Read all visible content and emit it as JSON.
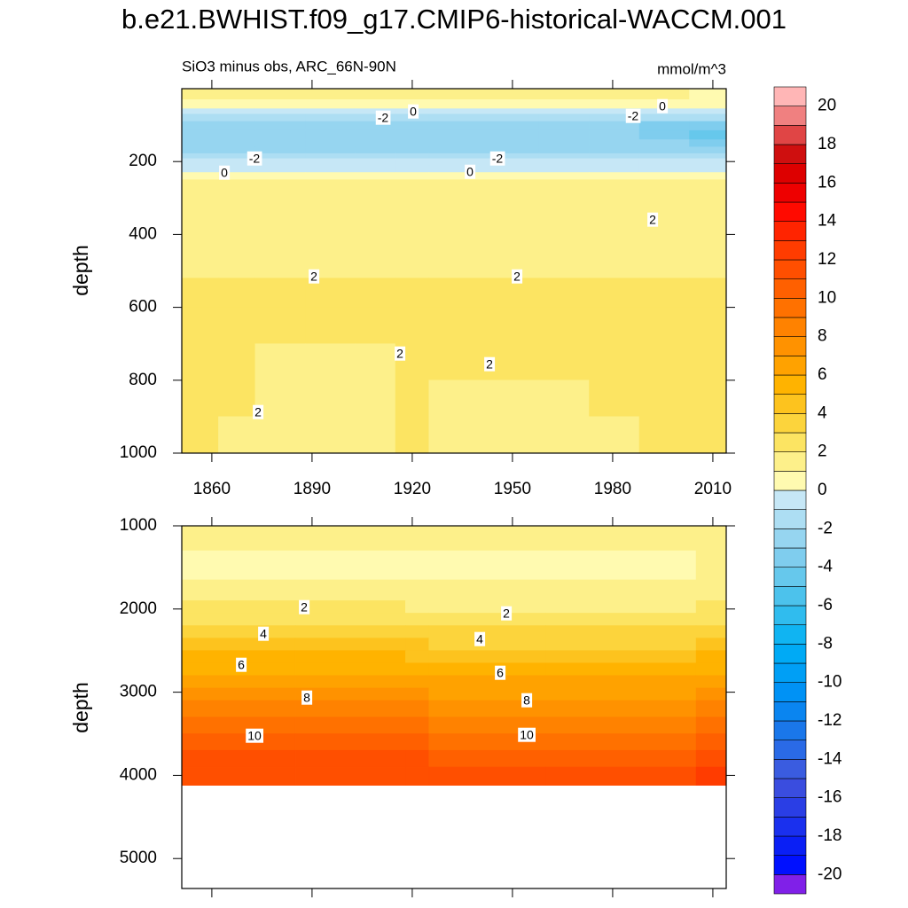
{
  "title": "b.e21.BWHIST.f09_g17.CMIP6-historical-WACCM.001",
  "chart_data": [
    {
      "type": "contour",
      "subtitle": "SiO3 minus obs, ARC_66N-90N",
      "units": "mmol/m^3",
      "y_label": "depth",
      "xlim": [
        1851,
        2014
      ],
      "ylim": [
        0,
        1000
      ],
      "xticks": [
        1860,
        1890,
        1920,
        1950,
        1980,
        2010
      ],
      "x_tick_labels": true,
      "yticks": [
        200,
        400,
        600,
        800,
        1000
      ],
      "x_edges": [
        1851,
        1862,
        1873,
        1888,
        1903,
        1915,
        1925,
        1943,
        1958,
        1973,
        1988,
        2003,
        2014
      ],
      "depth_edges": [
        0,
        30,
        55,
        70,
        90,
        115,
        140,
        160,
        178,
        192,
        210,
        230,
        250,
        350,
        450,
        520,
        600,
        700,
        800,
        900,
        1000
      ],
      "z": [
        [
          1.5,
          1.5,
          1.5,
          1.5,
          1.5,
          1.5,
          1.5,
          1.5,
          1.5,
          1.5,
          1.5,
          0.5
        ],
        [
          0.5,
          0.5,
          0.5,
          0.5,
          0.5,
          0.5,
          0.5,
          0.5,
          0.5,
          0.5,
          0.5,
          0.5
        ],
        [
          -0.5,
          -0.5,
          -0.5,
          -0.5,
          -0.5,
          -0.5,
          -0.5,
          -0.5,
          -0.5,
          -0.5,
          -0.5,
          -0.5
        ],
        [
          -1.5,
          -1.5,
          -1.5,
          -1.5,
          -1.5,
          -1.5,
          -1.5,
          -1.5,
          -1.5,
          -1.5,
          -1.5,
          -1.5
        ],
        [
          -2.5,
          -2.5,
          -2.5,
          -2.5,
          -2.5,
          -2.5,
          -2.5,
          -2.5,
          -2.5,
          -2.5,
          -3.5,
          -3.5
        ],
        [
          -2.5,
          -2.5,
          -2.5,
          -2.5,
          -2.5,
          -2.5,
          -2.5,
          -2.5,
          -2.5,
          -2.5,
          -3.5,
          -4.5
        ],
        [
          -2.5,
          -2.5,
          -2.5,
          -2.5,
          -2.5,
          -2.5,
          -2.5,
          -2.5,
          -2.5,
          -2.5,
          -2.5,
          -3.5
        ],
        [
          -2.5,
          -2.5,
          -2.5,
          -2.5,
          -2.5,
          -2.5,
          -2.5,
          -2.5,
          -2.5,
          -2.5,
          -2.5,
          -2.5
        ],
        [
          -1.5,
          -1.5,
          -1.5,
          -1.5,
          -1.5,
          -1.5,
          -1.5,
          -1.5,
          -1.5,
          -1.5,
          -1.5,
          -1.5
        ],
        [
          -0.5,
          -0.5,
          -0.5,
          -0.5,
          -0.5,
          -0.5,
          -0.5,
          -0.5,
          -0.5,
          -0.5,
          -0.5,
          -0.5
        ],
        [
          -0.5,
          -0.5,
          -0.5,
          -0.5,
          -0.5,
          -0.5,
          -0.5,
          -0.5,
          -0.5,
          -0.5,
          -0.5,
          -0.5
        ],
        [
          0.5,
          0.5,
          0.5,
          0.5,
          0.5,
          0.5,
          0.5,
          0.5,
          0.5,
          0.5,
          0.5,
          0.5
        ],
        [
          1.5,
          1.5,
          1.5,
          1.5,
          1.5,
          1.5,
          1.5,
          1.5,
          1.5,
          1.5,
          1.5,
          1.5
        ],
        [
          1.5,
          1.5,
          1.5,
          1.5,
          1.5,
          1.5,
          1.5,
          1.5,
          1.5,
          1.5,
          1.5,
          1.5
        ],
        [
          1.5,
          1.5,
          1.5,
          1.5,
          1.5,
          1.5,
          1.5,
          1.5,
          1.5,
          1.5,
          1.5,
          1.5
        ],
        [
          2.5,
          2.5,
          2.5,
          2.5,
          2.5,
          2.5,
          2.5,
          2.5,
          2.5,
          2.5,
          2.5,
          2.5
        ],
        [
          2.5,
          2.5,
          2.5,
          2.5,
          2.5,
          2.5,
          2.5,
          2.5,
          2.5,
          2.5,
          2.5,
          2.5
        ],
        [
          2.5,
          2.5,
          1.5,
          1.5,
          1.5,
          2.5,
          2.5,
          2.5,
          2.5,
          2.5,
          2.5,
          2.5
        ],
        [
          2.5,
          2.5,
          1.5,
          1.5,
          1.5,
          2.5,
          1.5,
          1.5,
          1.5,
          2.5,
          2.5,
          2.5
        ],
        [
          2.5,
          1.5,
          1.5,
          1.5,
          1.5,
          2.5,
          1.5,
          1.5,
          1.5,
          1.5,
          2.5,
          2.5
        ]
      ],
      "contour_labels": [
        0,
        -2,
        -2,
        0,
        -2,
        0,
        -2,
        0,
        2,
        2,
        2,
        2,
        2,
        2
      ]
    },
    {
      "type": "contour",
      "y_label": "depth",
      "xlim": [
        1851,
        2014
      ],
      "ylim": [
        1000,
        5360
      ],
      "xticks": [
        1860,
        1890,
        1920,
        1950,
        1980,
        2010
      ],
      "x_tick_labels": false,
      "yticks": [
        1000,
        2000,
        3000,
        4000,
        5000
      ],
      "x_edges": [
        1851,
        1885,
        1918,
        1925,
        1960,
        1990,
        2005,
        2014
      ],
      "depth_edges": [
        1000,
        1300,
        1650,
        1900,
        2050,
        2200,
        2350,
        2500,
        2650,
        2800,
        2950,
        3100,
        3300,
        3500,
        3700,
        3900,
        4120
      ],
      "z": [
        [
          1.5,
          1.5,
          1.5,
          1.5,
          1.5,
          1.5,
          1.5
        ],
        [
          0.5,
          0.5,
          0.5,
          0.5,
          0.5,
          0.5,
          1.5
        ],
        [
          1.5,
          1.5,
          1.5,
          1.5,
          1.5,
          1.5,
          1.5
        ],
        [
          2.1,
          2.1,
          1.9,
          1.6,
          1.6,
          1.6,
          2.1
        ],
        [
          2.9,
          2.9,
          2.6,
          2.4,
          2.4,
          2.4,
          2.9
        ],
        [
          3.6,
          3.6,
          3.4,
          3.1,
          3.1,
          3.1,
          3.6
        ],
        [
          4.4,
          4.4,
          4.1,
          3.9,
          3.9,
          3.9,
          4.4
        ],
        [
          5.1,
          5.1,
          4.9,
          4.6,
          4.6,
          4.6,
          5.1
        ],
        [
          5.9,
          5.9,
          5.6,
          5.4,
          5.4,
          5.4,
          5.9
        ],
        [
          6.6,
          6.6,
          6.4,
          6.1,
          6.1,
          6.1,
          6.6
        ],
        [
          7.4,
          7.4,
          7.1,
          6.9,
          6.9,
          6.9,
          7.4
        ],
        [
          8.3,
          8.3,
          8.0,
          7.8,
          7.8,
          7.8,
          8.3
        ],
        [
          9.3,
          9.3,
          9.0,
          8.8,
          8.8,
          8.8,
          9.3
        ],
        [
          10.3,
          10.3,
          10.0,
          9.8,
          9.8,
          9.8,
          10.3
        ],
        [
          11.3,
          11.3,
          11.0,
          10.8,
          10.8,
          10.8,
          11.8
        ],
        [
          11.5,
          11.5,
          11.4,
          11.3,
          11.3,
          11.5,
          12.5
        ]
      ],
      "contour_labels": [
        2,
        2,
        4,
        4,
        6,
        6,
        8,
        8,
        10,
        10
      ]
    }
  ],
  "colorbar": {
    "levels": [
      -20,
      -19,
      -18,
      -17,
      -16,
      -15,
      -14,
      -13,
      -12,
      -11,
      -10,
      -9,
      -8,
      -7,
      -6,
      -5,
      -4,
      -3,
      -2,
      -1,
      0,
      1,
      2,
      3,
      4,
      5,
      6,
      7,
      8,
      9,
      10,
      11,
      12,
      13,
      14,
      15,
      16,
      17,
      18,
      19,
      20
    ],
    "colors": [
      "#8020e8",
      "#0010ff",
      "#0a1ff5",
      "#1a30ee",
      "#2a3ee5",
      "#3a4ddf",
      "#3a5ce0",
      "#2a6ae6",
      "#1a77ea",
      "#0a85f0",
      "#0092f5",
      "#009ff5",
      "#00aaf5",
      "#10b4f2",
      "#30bcee",
      "#4cc2ec",
      "#66c8ec",
      "#7fcdee",
      "#96d5f0",
      "#addef3",
      "#c6e7f6",
      "#fffab0",
      "#fdf08a",
      "#fce462",
      "#fcd43c",
      "#fdc31e",
      "#ffb300",
      "#ffa200",
      "#ff9200",
      "#ff8200",
      "#ff7100",
      "#ff6000",
      "#ff4f00",
      "#ff3c00",
      "#ff2400",
      "#ff0a00",
      "#ee0000",
      "#dd0000",
      "#cf0f0f",
      "#e04545",
      "#f08080",
      "#ffb6b6"
    ],
    "ticks": [
      20,
      18,
      16,
      14,
      12,
      10,
      8,
      6,
      4,
      2,
      0,
      -2,
      -4,
      -6,
      -8,
      -10,
      -12,
      -14,
      -16,
      -18,
      -20
    ]
  }
}
